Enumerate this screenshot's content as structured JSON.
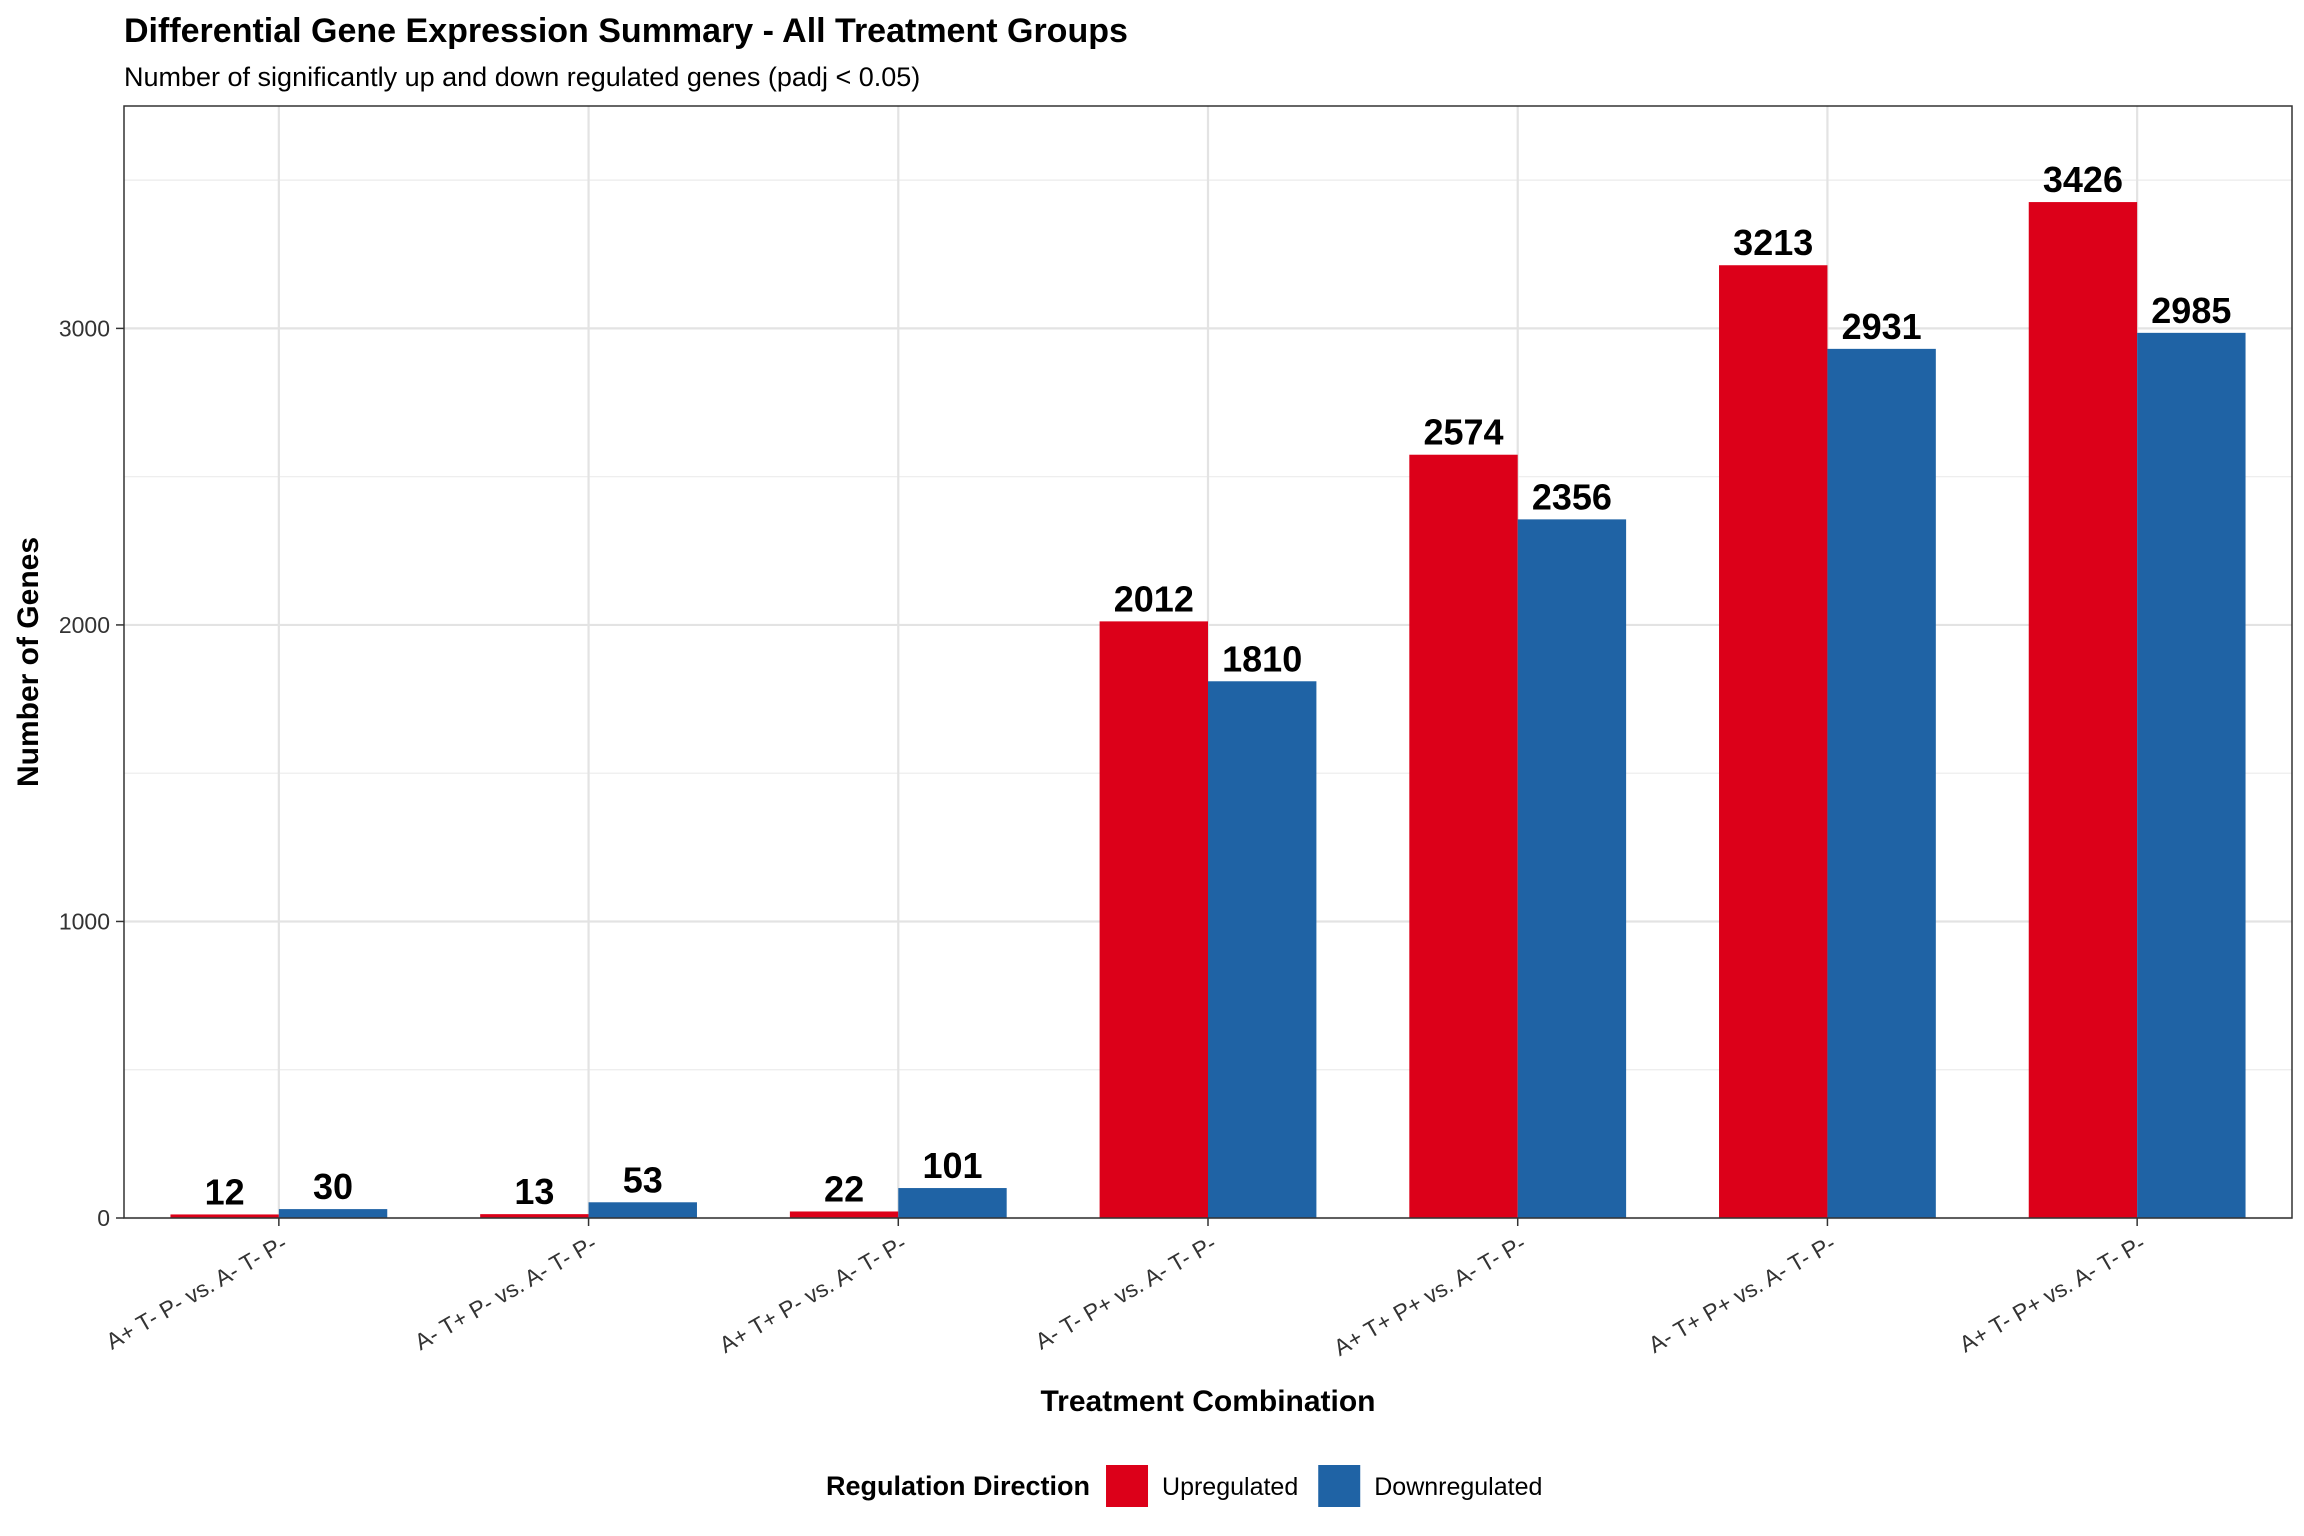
{
  "chart_data": {
    "type": "bar",
    "title": "Differential Gene Expression Summary - All Treatment Groups",
    "subtitle": "Number of significantly up and down regulated genes (padj < 0.05)",
    "xlabel": "Treatment Combination",
    "ylabel": "Number of Genes",
    "ylim": [
      0,
      3750
    ],
    "yticks": [
      0,
      1000,
      2000,
      3000
    ],
    "grid": true,
    "legend_position": "bottom",
    "legend_title": "Regulation Direction",
    "categories": [
      "A+ T- P- vs. A- T- P-",
      "A- T+ P- vs. A- T- P-",
      "A+ T+ P- vs. A- T- P-",
      "A- T- P+ vs. A- T- P-",
      "A+ T+ P+ vs. A- T- P-",
      "A- T+ P+ vs. A- T- P-",
      "A+ T- P+ vs. A- T- P-"
    ],
    "series": [
      {
        "name": "Upregulated",
        "color": "#DC0019",
        "values": [
          12,
          13,
          22,
          2012,
          2574,
          3213,
          3426
        ]
      },
      {
        "name": "Downregulated",
        "color": "#1F63A5",
        "values": [
          30,
          53,
          101,
          1810,
          2356,
          2931,
          2985
        ]
      }
    ]
  }
}
